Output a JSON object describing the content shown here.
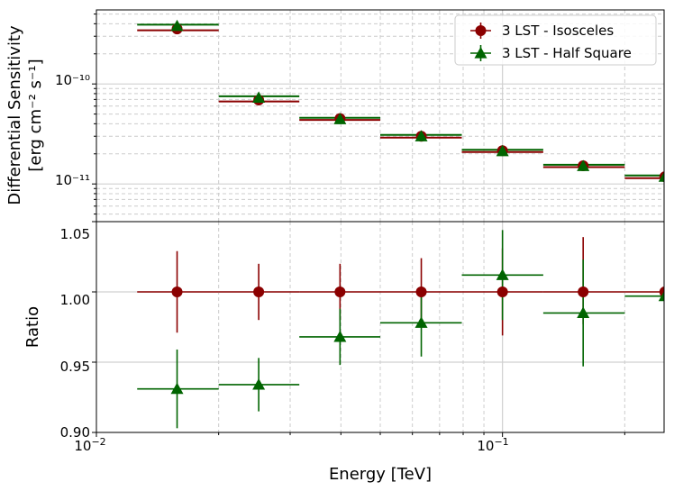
{
  "colors": {
    "isosceles": "#8b0000",
    "half_square": "#006400",
    "major_grid": "#d0d0d0",
    "minor_grid": "#cccccc"
  },
  "chart_data": [
    {
      "type": "scatter",
      "panel": "top",
      "xscale": "log",
      "yscale": "log",
      "xlim": [
        0.01,
        0.25
      ],
      "ylim": [
        4.2e-12,
        5.5e-10
      ],
      "ylabel_line1": "Differential Sensitivity",
      "ylabel_line2": "[erg cm⁻² s⁻¹]",
      "yticks": [
        {
          "value": 1e-10,
          "label": "10⁻¹⁰"
        },
        {
          "value": 1e-11,
          "label": "10⁻¹¹"
        }
      ],
      "bins": [
        [
          0.0126,
          0.02
        ],
        [
          0.02,
          0.0316
        ],
        [
          0.0316,
          0.05
        ],
        [
          0.05,
          0.0794
        ],
        [
          0.0794,
          0.126
        ],
        [
          0.126,
          0.2
        ],
        [
          0.2,
          0.316
        ]
      ],
      "x": [
        0.0158,
        0.0251,
        0.0398,
        0.0631,
        0.1,
        0.158,
        0.251
      ],
      "series": [
        {
          "name": "3 LST - Isosceles",
          "marker": "circle",
          "values": [
            3.55e-10,
            6.9e-11,
            4.5e-11,
            3e-11,
            2.15e-11,
            1.52e-11,
            1.18e-11
          ]
        },
        {
          "name": "3 LST - Half Square",
          "marker": "triangle",
          "values": [
            3.8e-10,
            7.3e-11,
            4.45e-11,
            3e-11,
            2.13e-11,
            1.51e-11,
            1.18e-11
          ]
        }
      ],
      "legend": {
        "position": "top-right",
        "entries": [
          "3 LST - Isosceles",
          "3 LST - Half Square"
        ]
      }
    },
    {
      "type": "scatter",
      "panel": "bottom",
      "xscale": "log",
      "xlim": [
        0.01,
        0.25
      ],
      "ylim": [
        0.9,
        1.05
      ],
      "xlabel": "Energy [TeV]",
      "ylabel": "Ratio",
      "xticks": [
        {
          "value": 0.01,
          "base": "10",
          "exp": "−2"
        },
        {
          "value": 0.1,
          "base": "10",
          "exp": "−1"
        }
      ],
      "yticks": [
        {
          "value": 0.9,
          "label": "0.90"
        },
        {
          "value": 0.95,
          "label": "0.95"
        },
        {
          "value": 1.0,
          "label": "1.00"
        },
        {
          "value": 1.05,
          "label": "1.05"
        }
      ],
      "bins": [
        [
          0.0126,
          0.02
        ],
        [
          0.02,
          0.0316
        ],
        [
          0.0316,
          0.05
        ],
        [
          0.05,
          0.0794
        ],
        [
          0.0794,
          0.126
        ],
        [
          0.126,
          0.2
        ],
        [
          0.2,
          0.316
        ]
      ],
      "x": [
        0.0158,
        0.0251,
        0.0398,
        0.0631,
        0.1,
        0.158,
        0.251
      ],
      "series": [
        {
          "name": "3 LST - Isosceles",
          "marker": "circle",
          "values": [
            1.0,
            1.0,
            1.0,
            1.0,
            1.0,
            1.0,
            1.0
          ],
          "err_low": [
            0.971,
            0.98,
            0.98,
            0.976,
            0.969,
            0.977,
            0.953
          ],
          "err_high": [
            1.029,
            1.02,
            1.02,
            1.024,
            1.031,
            1.039,
            1.047
          ]
        },
        {
          "name": "3 LST - Half Square",
          "marker": "triangle",
          "values": [
            0.931,
            0.934,
            0.968,
            0.978,
            1.012,
            0.985,
            0.997
          ],
          "err_low": [
            0.903,
            0.915,
            0.948,
            0.954,
            0.98,
            0.947,
            0.949
          ],
          "err_high": [
            0.959,
            0.953,
            0.988,
            1.002,
            1.044,
            1.023,
            1.045
          ]
        }
      ]
    }
  ]
}
